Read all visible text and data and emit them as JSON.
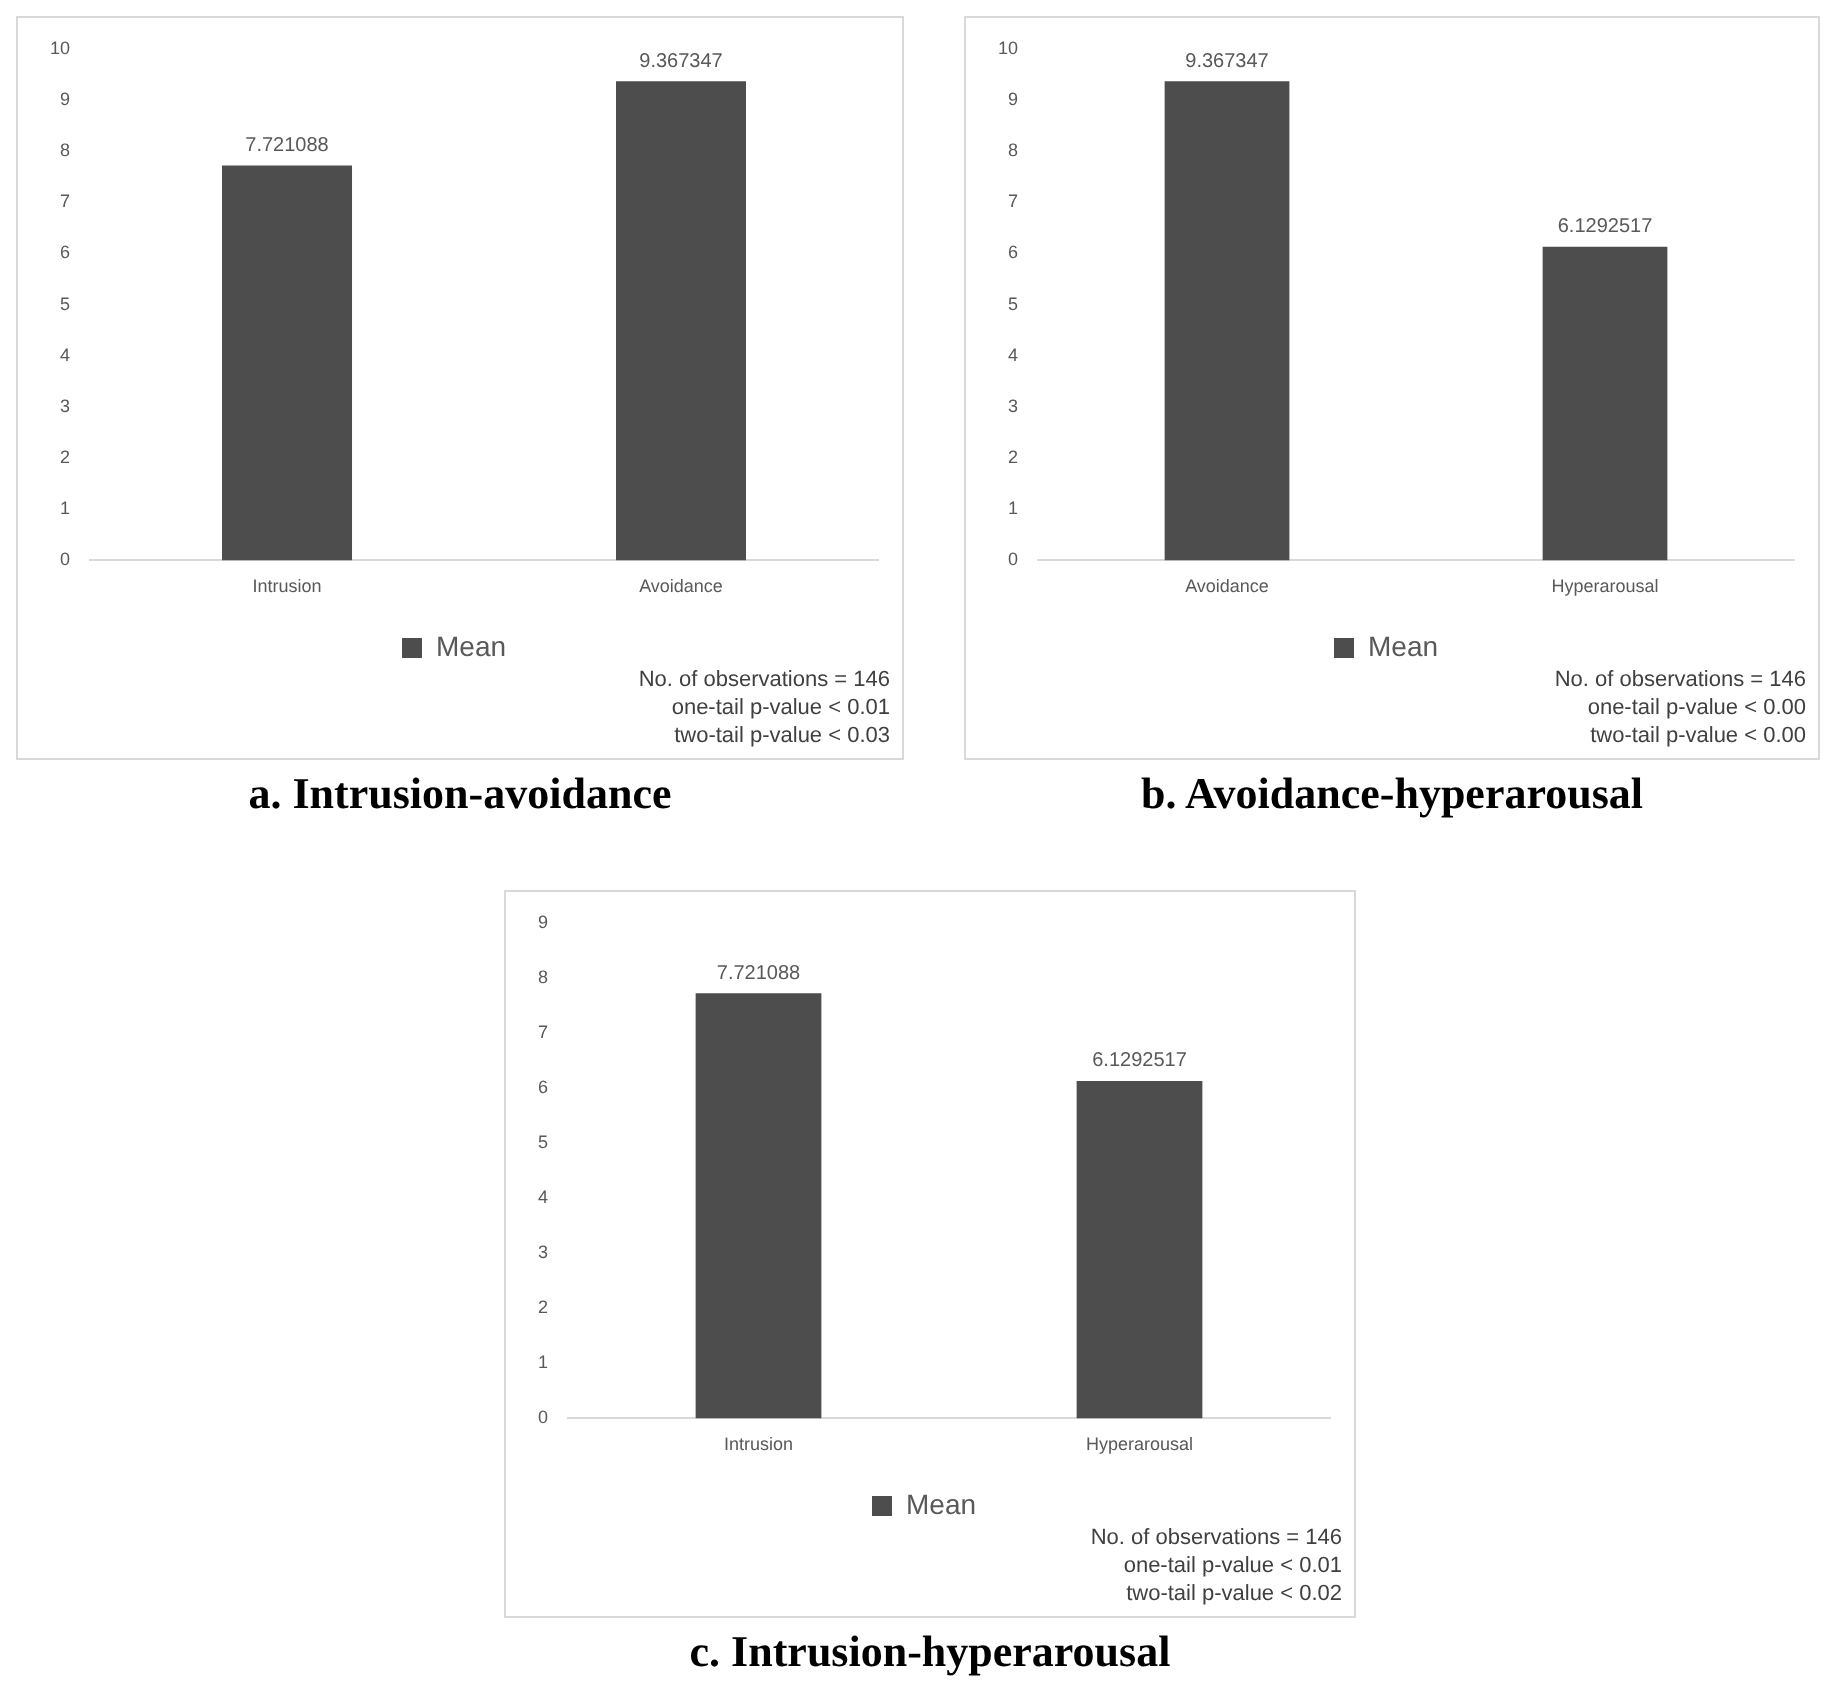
{
  "chart_data": [
    {
      "type": "bar",
      "title": "a. Intrusion-avoidance",
      "categories": [
        "Intrusion",
        "Avoidance"
      ],
      "series": [
        {
          "name": "Mean",
          "color": "#4d4d4d",
          "values": [
            7.721088,
            9.367347
          ]
        }
      ],
      "ylim": [
        0,
        10
      ],
      "yticks": [
        0,
        1,
        2,
        3,
        4,
        5,
        6,
        7,
        8,
        9,
        10
      ],
      "data_labels": true,
      "legend": "bottom",
      "annotations": [
        "No. of observations = 146",
        "one-tail p-value < 0.01",
        "two-tail p-value < 0.03"
      ]
    },
    {
      "type": "bar",
      "title": "b. Avoidance-hyperarousal",
      "categories": [
        "Avoidance",
        "Hyperarousal"
      ],
      "series": [
        {
          "name": "Mean",
          "color": "#4d4d4d",
          "values": [
            9.367347,
            6.1292517
          ]
        }
      ],
      "ylim": [
        0,
        10
      ],
      "yticks": [
        0,
        1,
        2,
        3,
        4,
        5,
        6,
        7,
        8,
        9,
        10
      ],
      "data_labels": true,
      "legend": "bottom",
      "annotations": [
        "No. of observations = 146",
        "one-tail p-value < 0.00",
        "two-tail p-value < 0.00"
      ]
    },
    {
      "type": "bar",
      "title": "c. Intrusion-hyperarousal",
      "categories": [
        "Intrusion",
        "Hyperarousal"
      ],
      "series": [
        {
          "name": "Mean",
          "color": "#4d4d4d",
          "values": [
            7.721088,
            6.1292517
          ]
        }
      ],
      "ylim": [
        0,
        9
      ],
      "yticks": [
        0,
        1,
        2,
        3,
        4,
        5,
        6,
        7,
        8,
        9
      ],
      "data_labels": true,
      "legend": "bottom",
      "annotations": [
        "No. of observations = 146",
        "one-tail p-value < 0.01",
        "two-tail p-value < 0.02"
      ]
    }
  ]
}
